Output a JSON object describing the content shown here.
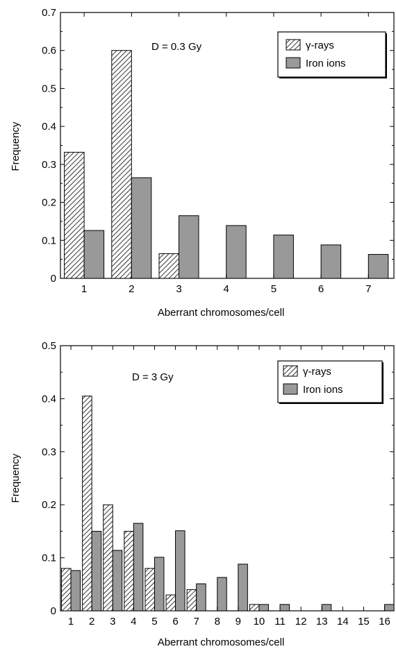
{
  "chart_data": [
    {
      "type": "bar",
      "annotation": "D = 0.3 Gy",
      "xlabel": "Aberrant chromosomes/cell",
      "ylabel": "Frequency",
      "ylim": [
        0,
        0.7
      ],
      "yticks": [
        "0",
        "0.1",
        "0.2",
        "0.3",
        "0.4",
        "0.5",
        "0.6",
        "0.7"
      ],
      "categories": [
        "1",
        "2",
        "3",
        "4",
        "5",
        "6",
        "7"
      ],
      "legend_position": "top-right",
      "series": [
        {
          "name": "γ-rays",
          "pattern": "hatched",
          "color": "#ffffff",
          "values": [
            0.332,
            0.6,
            0.065,
            0,
            0,
            0,
            0
          ]
        },
        {
          "name": "Iron ions",
          "pattern": "solid",
          "color": "#999999",
          "values": [
            0.126,
            0.265,
            0.165,
            0.139,
            0.114,
            0.088,
            0.063
          ]
        }
      ]
    },
    {
      "type": "bar",
      "annotation": "D = 3 Gy",
      "xlabel": "Aberrant chromosomes/cell",
      "ylabel": "Frequency",
      "ylim": [
        0,
        0.5
      ],
      "yticks": [
        "0",
        "0.1",
        "0.2",
        "0.3",
        "0.4",
        "0.5"
      ],
      "categories": [
        "1",
        "2",
        "3",
        "4",
        "5",
        "6",
        "7",
        "8",
        "9",
        "10",
        "11",
        "12",
        "13",
        "14",
        "15",
        "16"
      ],
      "legend_position": "top-right",
      "series": [
        {
          "name": "γ-rays",
          "pattern": "hatched",
          "color": "#ffffff",
          "values": [
            0.08,
            0.405,
            0.2,
            0.15,
            0.08,
            0.03,
            0.04,
            0,
            0,
            0.012,
            0,
            0,
            0,
            0,
            0,
            0
          ]
        },
        {
          "name": "Iron ions",
          "pattern": "solid",
          "color": "#999999",
          "values": [
            0.076,
            0.15,
            0.114,
            0.165,
            0.101,
            0.151,
            0.051,
            0.063,
            0.088,
            0.012,
            0.012,
            0,
            0.012,
            0,
            0,
            0.012
          ]
        }
      ]
    }
  ]
}
